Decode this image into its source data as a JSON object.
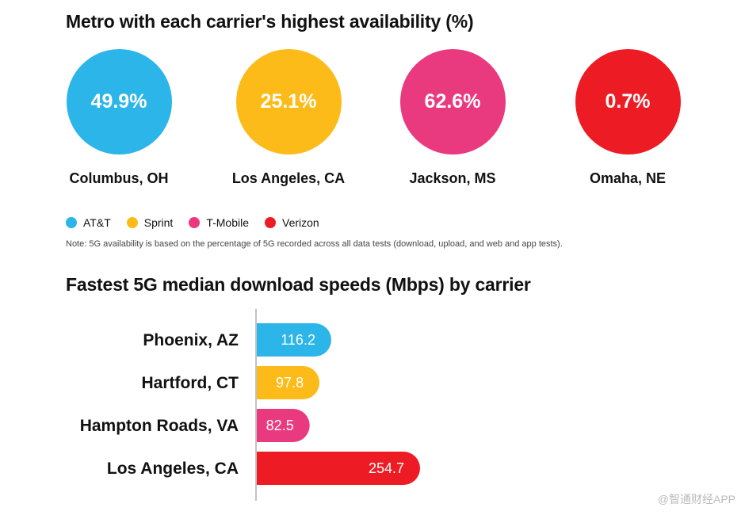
{
  "chart_data": [
    {
      "type": "bubble",
      "title": "Metro with each carrier's highest availability (%)",
      "unit": "%",
      "items": [
        {
          "carrier": "AT&T",
          "metro": "Columbus, OH",
          "value": 49.9,
          "label": "49.9%",
          "color": "#2bb5e8"
        },
        {
          "carrier": "Sprint",
          "metro": "Los Angeles, CA",
          "value": 25.1,
          "label": "25.1%",
          "color": "#fdbb19"
        },
        {
          "carrier": "T-Mobile",
          "metro": "Jackson, MS",
          "value": 62.6,
          "label": "62.6%",
          "color": "#ea3a7f"
        },
        {
          "carrier": "Verizon",
          "metro": "Omaha, NE",
          "value": 0.7,
          "label": "0.7%",
          "color": "#ed1c24"
        }
      ],
      "legend": [
        {
          "name": "AT&T",
          "color": "#2bb5e8"
        },
        {
          "name": "Sprint",
          "color": "#fdbb19"
        },
        {
          "name": "T-Mobile",
          "color": "#ea3a7f"
        },
        {
          "name": "Verizon",
          "color": "#ed1c24"
        }
      ],
      "note": "Note: 5G availability is based on the percentage of 5G recorded across all data tests (download, upload, and web and app tests)."
    },
    {
      "type": "bar",
      "orientation": "horizontal",
      "title": "Fastest 5G median download speeds (Mbps) by carrier",
      "unit": "Mbps",
      "categories": [
        "Phoenix, AZ",
        "Hartford, CT",
        "Hampton Roads, VA",
        "Los Angeles, CA"
      ],
      "values": [
        116.2,
        97.8,
        82.5,
        254.7
      ],
      "value_labels": [
        "116.2",
        "97.8",
        "82.5",
        "254.7"
      ],
      "carriers": [
        "AT&T",
        "Sprint",
        "T-Mobile",
        "Verizon"
      ],
      "colors": [
        "#2bb5e8",
        "#fdbb19",
        "#ea3a7f",
        "#ed1c24"
      ],
      "xlim": [
        0,
        254.7
      ]
    }
  ],
  "watermark": "@智通财经APP"
}
